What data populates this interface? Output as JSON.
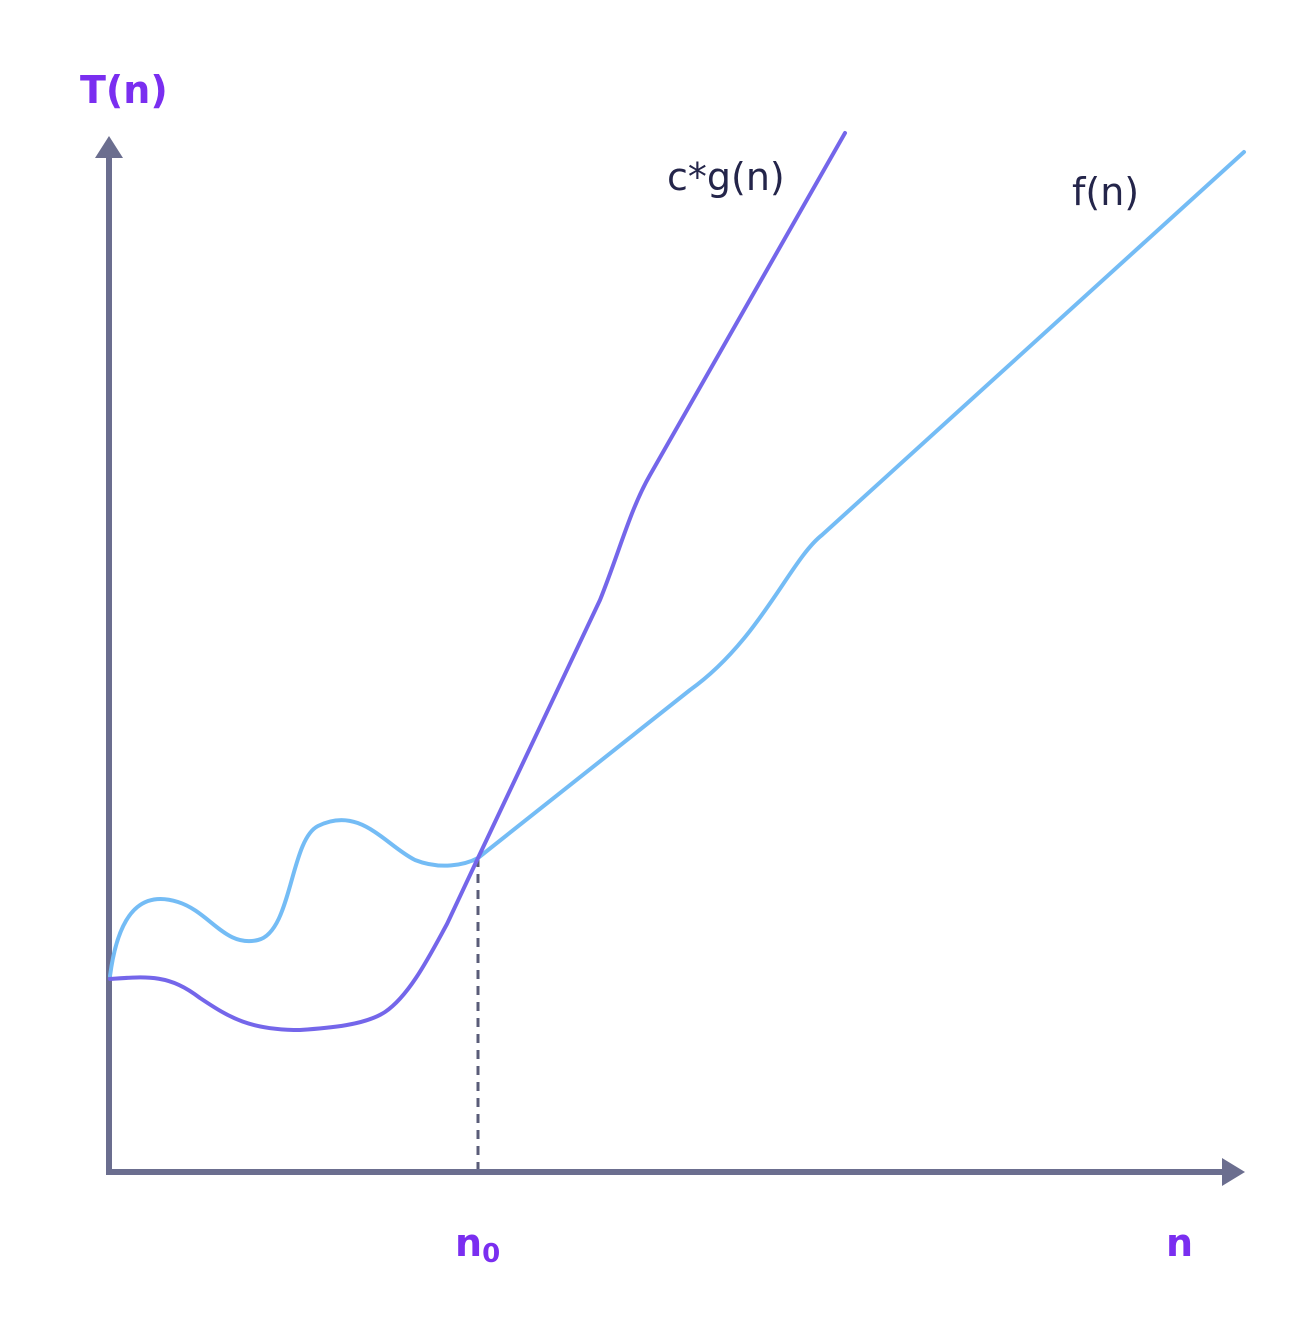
{
  "labels": {
    "y_axis": "T(n)",
    "x_axis": "n",
    "threshold_base": "n",
    "threshold_sub": "0",
    "upper_bound_curve": "c*g(n)",
    "function_curve": "f(n)"
  },
  "colors": {
    "axis": "#6b6e8f",
    "axis_label": "#7a2ef0",
    "upper_bound_curve": "#7466ea",
    "function_curve": "#74bcf5",
    "curve_label": "#24254a",
    "threshold_line": "#5a5c78"
  }
}
